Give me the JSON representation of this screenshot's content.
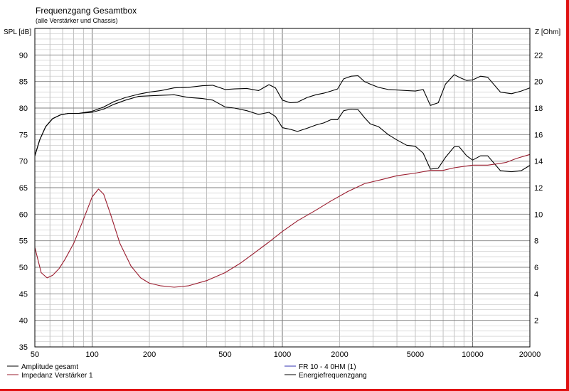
{
  "chart_data": {
    "type": "line",
    "title": "Frequenzgang Gesamtbox",
    "subtitle": "(alle Verstärker und Chassis)",
    "ylabel_left": "SPL [dB]",
    "ylabel_right": "Z [Ohm]",
    "x_scale": "log",
    "xlim": [
      50,
      20000
    ],
    "ylim_left": [
      35,
      95
    ],
    "ylim_right": [
      0,
      24
    ],
    "x_ticks": [
      50,
      100,
      200,
      500,
      1000,
      2000,
      5000,
      10000,
      20000
    ],
    "y_ticks_left": [
      35,
      40,
      45,
      50,
      55,
      60,
      65,
      70,
      75,
      80,
      85,
      90
    ],
    "y_ticks_right": [
      2,
      4,
      6,
      8,
      10,
      12,
      14,
      16,
      18,
      20,
      22
    ],
    "grid": true,
    "colors": {
      "amplitude": "#000000",
      "impedance": "#9a1c2e",
      "fr10": "#3030b0",
      "energy": "#000000",
      "frame": "#e01010",
      "grid": "#a8a8a8"
    },
    "series": [
      {
        "name": "Amplitude gesamt",
        "axis": "left",
        "x": [
          50,
          53,
          57,
          62,
          68,
          75,
          85,
          100,
          115,
          130,
          150,
          175,
          200,
          230,
          270,
          320,
          380,
          430,
          500,
          560,
          650,
          750,
          850,
          920,
          1000,
          1100,
          1200,
          1350,
          1500,
          1650,
          1800,
          1950,
          2100,
          2300,
          2500,
          2700,
          2900,
          3200,
          3600,
          4000,
          4500,
          5000,
          5500,
          6000,
          6600,
          7200,
          8000,
          8500,
          9300,
          10000,
          11000,
          12000,
          14000,
          16000,
          18000,
          20000
        ],
        "y": [
          71,
          74,
          76.5,
          78,
          78.7,
          79,
          79,
          79.2,
          79.8,
          80.7,
          81.5,
          82.2,
          82.3,
          82.4,
          82.5,
          82,
          81.8,
          81.5,
          80.2,
          80,
          79.5,
          78.8,
          79.2,
          78.4,
          76.3,
          76,
          75.6,
          76.2,
          76.8,
          77.2,
          77.8,
          77.8,
          79.5,
          79.8,
          79.7,
          78.2,
          77,
          76.5,
          75,
          74,
          73,
          72.8,
          71.5,
          68.5,
          68.7,
          70.7,
          72.7,
          72.7,
          71,
          70.2,
          71,
          71,
          68.2,
          68,
          68.2,
          69.2
        ]
      },
      {
        "name": "Impedanz Verstärker 1",
        "axis": "right",
        "x": [
          50,
          54,
          58,
          62,
          67,
          72,
          80,
          90,
          100,
          108,
          115,
          125,
          140,
          160,
          180,
          200,
          230,
          270,
          320,
          400,
          500,
          600,
          700,
          850,
          1000,
          1200,
          1500,
          1800,
          2200,
          2700,
          3300,
          4000,
          5000,
          6000,
          7000,
          8000,
          9000,
          10000,
          11000,
          12000,
          13500,
          15000,
          17000,
          20000
        ],
        "y": [
          7.5,
          5.6,
          5.2,
          5.4,
          5.9,
          6.6,
          7.8,
          9.6,
          11.3,
          11.9,
          11.5,
          10,
          7.8,
          6.1,
          5.2,
          4.8,
          4.6,
          4.5,
          4.6,
          5,
          5.6,
          6.3,
          7,
          7.9,
          8.7,
          9.5,
          10.3,
          11,
          11.7,
          12.3,
          12.6,
          12.9,
          13.1,
          13.3,
          13.3,
          13.5,
          13.6,
          13.7,
          13.7,
          13.7,
          13.8,
          13.9,
          14.2,
          14.5
        ]
      },
      {
        "name": "FR 10 - 4 0HM (1)",
        "axis": "left",
        "x": [],
        "y": []
      },
      {
        "name": "Energiefrequenzgang",
        "axis": "left",
        "x": [
          50,
          53,
          57,
          62,
          68,
          75,
          85,
          100,
          115,
          130,
          150,
          175,
          200,
          230,
          270,
          320,
          380,
          430,
          500,
          560,
          650,
          750,
          850,
          920,
          1000,
          1100,
          1200,
          1350,
          1500,
          1650,
          1800,
          1950,
          2100,
          2300,
          2500,
          2700,
          2900,
          3200,
          3600,
          4000,
          4500,
          5000,
          5500,
          6000,
          6600,
          7200,
          8000,
          8500,
          9300,
          10000,
          11000,
          12000,
          14000,
          16000,
          18000,
          20000
        ],
        "y": [
          71,
          74,
          76.5,
          78,
          78.7,
          79,
          79,
          79.4,
          80.2,
          81.2,
          82,
          82.6,
          83,
          83.3,
          83.8,
          83.9,
          84.2,
          84.3,
          83.5,
          83.6,
          83.7,
          83.3,
          84.4,
          83.8,
          81.5,
          81,
          81.1,
          82,
          82.5,
          82.8,
          83.2,
          83.6,
          85.5,
          86,
          86.1,
          85,
          84.5,
          83.9,
          83.5,
          83.4,
          83.3,
          83.2,
          83.5,
          80.5,
          81,
          84.5,
          86.3,
          85.8,
          85.2,
          85.3,
          86,
          85.8,
          83,
          82.7,
          83.2,
          83.8
        ]
      }
    ]
  }
}
